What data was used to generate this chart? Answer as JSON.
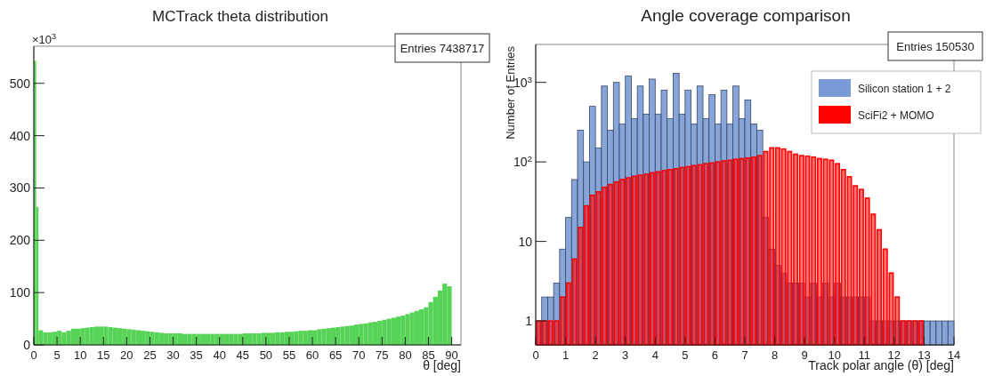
{
  "chart_data": [
    {
      "type": "histogram",
      "title": "MCTrack theta distribution",
      "xlabel": "θ [deg]",
      "annotations": [
        "×10$^{3}$",
        "Entries 7438717"
      ],
      "bins": [
        0,
        0.5,
        1,
        2,
        3,
        4,
        5,
        6,
        7,
        8,
        9,
        10,
        11,
        12,
        13,
        14,
        15,
        16,
        17,
        18,
        19,
        20,
        21,
        22,
        23,
        24,
        25,
        26,
        27,
        28,
        29,
        30,
        31,
        32,
        33,
        34,
        35,
        36,
        37,
        38,
        39,
        40,
        41,
        42,
        43,
        44,
        45,
        46,
        47,
        48,
        49,
        50,
        51,
        52,
        53,
        54,
        55,
        56,
        57,
        58,
        59,
        60,
        61,
        62,
        63,
        64,
        65,
        66,
        67,
        68,
        69,
        70,
        71,
        72,
        73,
        74,
        75,
        76,
        77,
        78,
        79,
        80,
        81,
        82,
        83,
        84,
        85,
        86,
        87,
        88,
        89,
        90
      ],
      "series": [
        {
          "color": "#57d357",
          "values": [
            543,
            264,
            28,
            24,
            24,
            25,
            27,
            24,
            27,
            31,
            31,
            32,
            33,
            34,
            35,
            35,
            35,
            34,
            33,
            32,
            31,
            30,
            29,
            28,
            27,
            26,
            25,
            24,
            23,
            22,
            22,
            22,
            22,
            21,
            21,
            21,
            21,
            21,
            21,
            21,
            21,
            21,
            21,
            21,
            21,
            21,
            22,
            22,
            22,
            22,
            23,
            23,
            23,
            24,
            24,
            25,
            25,
            26,
            27,
            27,
            28,
            28,
            30,
            31,
            32,
            33,
            34,
            35,
            36,
            37,
            39,
            40,
            41,
            43,
            44,
            46,
            48,
            50,
            52,
            54,
            56,
            59,
            62,
            65,
            68,
            72,
            82,
            92,
            104,
            117,
            112
          ]
        }
      ],
      "xlim": [
        0,
        92
      ],
      "xticks": [
        0,
        5,
        10,
        15,
        20,
        25,
        30,
        35,
        40,
        45,
        50,
        55,
        60,
        65,
        70,
        75,
        80,
        85,
        90
      ],
      "ylim": [
        0,
        571
      ],
      "yticks": [
        0,
        100,
        200,
        300,
        400,
        500
      ]
    },
    {
      "type": "histogram",
      "title": "Angle coverage comparison",
      "xlabel": "Track polar angle (θ) [deg]",
      "ylabel": "Number of Entries",
      "annotations": [
        "Entries 150530"
      ],
      "legend": "top right",
      "log": true,
      "bins": [
        0,
        0.2,
        0.4,
        0.6,
        0.8,
        1,
        1.2,
        1.4,
        1.6,
        1.8,
        2,
        2.2,
        2.4,
        2.6,
        2.8,
        3,
        3.2,
        3.4,
        3.6,
        3.8,
        4,
        4.2,
        4.4,
        4.6,
        4.8,
        5,
        5.2,
        5.4,
        5.6,
        5.8,
        6,
        6.2,
        6.4,
        6.6,
        6.8,
        7,
        7.2,
        7.4,
        7.6,
        7.8,
        8,
        8.2,
        8.4,
        8.6,
        8.8,
        9,
        9.2,
        9.4,
        9.6,
        9.8,
        10,
        10.2,
        10.4,
        10.6,
        10.8,
        11,
        11.2,
        11.4,
        11.6,
        11.8,
        12,
        12.2,
        12.4,
        12.6,
        12.8,
        13,
        13.2,
        13.4,
        13.6,
        13.8,
        14
      ],
      "series": [
        {
          "name": "Silicon station 1 + 2",
          "color": "#7b9bd6",
          "values": [
            1,
            2,
            2,
            3,
            8,
            20,
            60,
            250,
            100,
            500,
            150,
            900,
            250,
            1000,
            300,
            1200,
            350,
            900,
            400,
            1100,
            400,
            800,
            350,
            1300,
            400,
            800,
            300,
            900,
            350,
            700,
            300,
            800,
            300,
            900,
            350,
            600,
            300,
            250,
            20,
            8,
            5,
            4,
            3,
            3,
            3,
            2,
            3,
            2,
            3,
            2,
            3,
            2,
            2,
            2,
            2,
            2,
            1,
            1,
            1,
            1,
            1,
            1,
            1,
            1,
            1,
            1,
            1,
            1,
            1,
            1
          ]
        },
        {
          "name": "SciFi2 + MOMO",
          "color": "#ff0000",
          "values": [
            1,
            1,
            1,
            1,
            2,
            3,
            6,
            15,
            28,
            38,
            42,
            48,
            52,
            56,
            60,
            63,
            66,
            68,
            70,
            73,
            75,
            78,
            80,
            82,
            85,
            87,
            90,
            92,
            95,
            97,
            100,
            103,
            105,
            108,
            110,
            112,
            115,
            120,
            135,
            150,
            150,
            145,
            135,
            125,
            120,
            118,
            115,
            110,
            108,
            105,
            95,
            80,
            65,
            50,
            45,
            35,
            22,
            14,
            8,
            4,
            2,
            1,
            1,
            1,
            1,
            null,
            null,
            null,
            null,
            null
          ]
        }
      ],
      "xlim": [
        0,
        14
      ],
      "xticks": [
        0,
        1,
        2,
        3,
        4,
        5,
        6,
        7,
        8,
        9,
        10,
        11,
        12,
        13,
        14
      ],
      "ylim": [
        0.5,
        3000
      ],
      "yticks": [
        1,
        10,
        {
          "value": 100,
          "label": "10$^{2}$"
        },
        {
          "value": 1000,
          "label": "10$^{3}$"
        }
      ]
    }
  ]
}
